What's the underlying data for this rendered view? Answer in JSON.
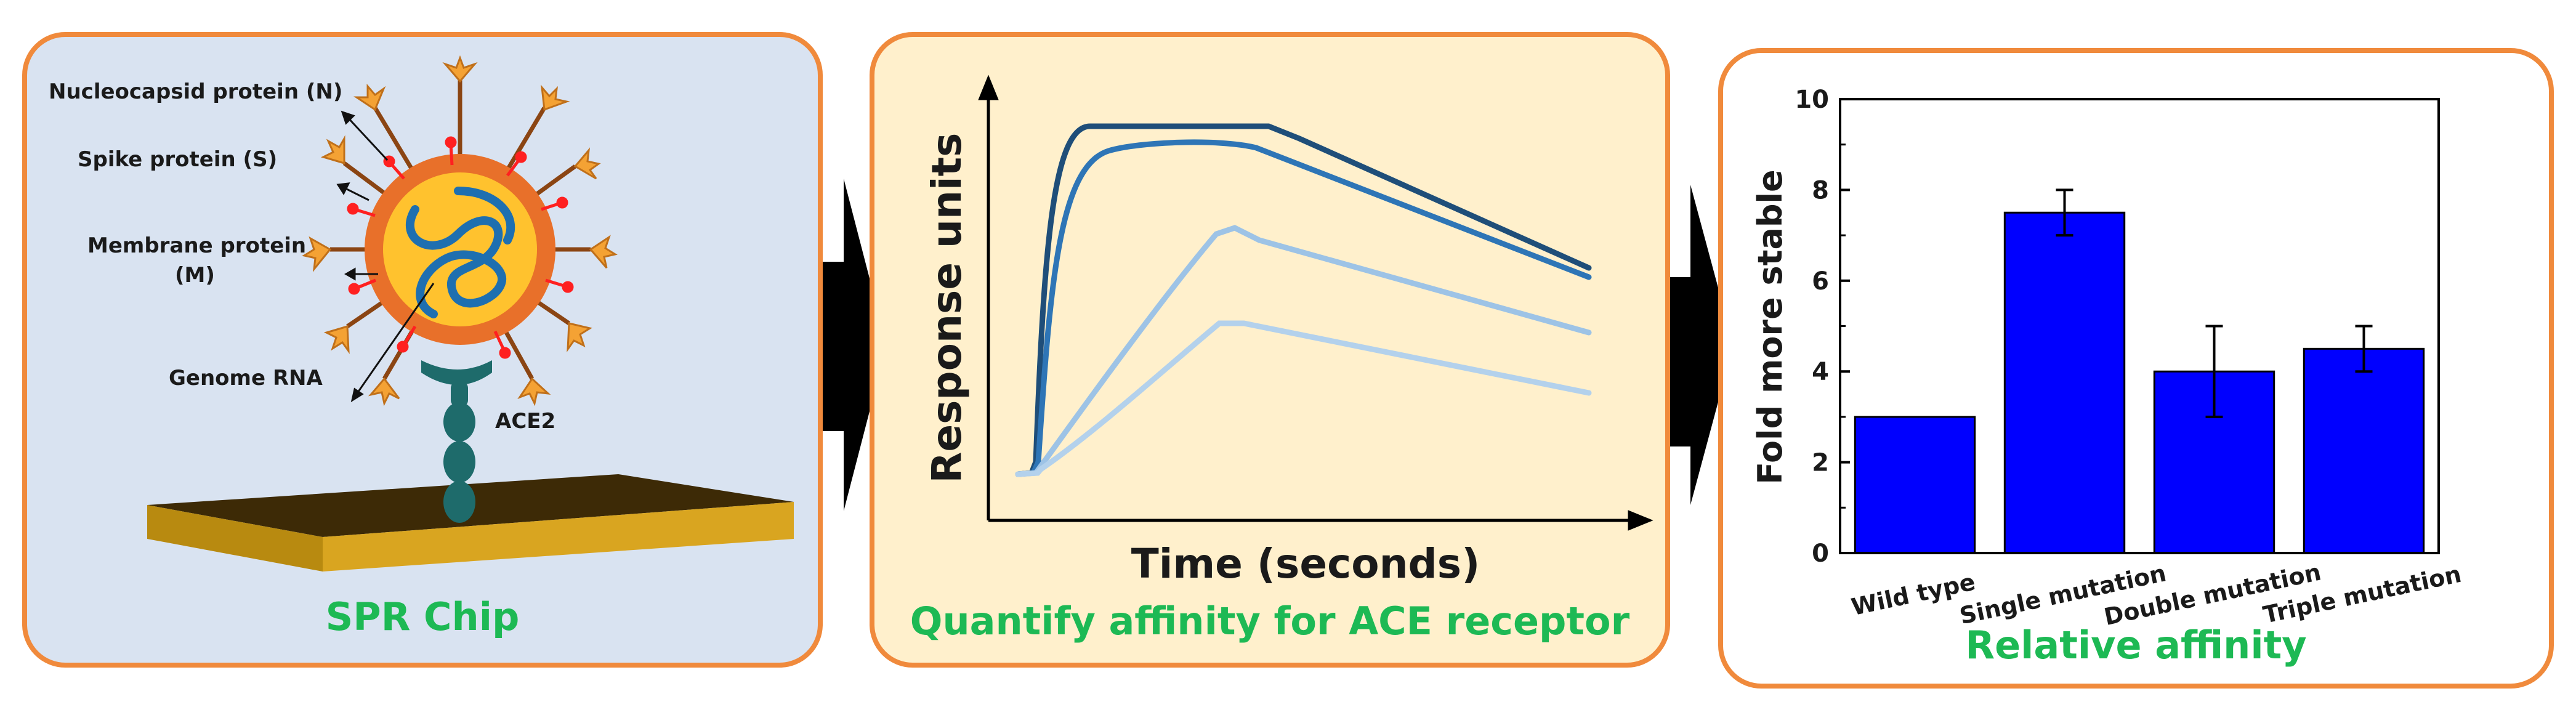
{
  "panel1": {
    "caption": "SPR Chip",
    "labels": {
      "nucleocapsid": "Nucleocapsid protein (N)",
      "spike": "Spike protein (S)",
      "membrane_1": "Membrane protein",
      "membrane_2": "(M)",
      "genome": "Genome RNA",
      "receptor": "ACE2"
    }
  },
  "panel2": {
    "caption": "Quantify affinity for ACE receptor",
    "xlabel": "Time (seconds)",
    "ylabel": "Response units"
  },
  "panel3": {
    "caption": "Relative affinity"
  },
  "colors": {
    "border": "#f08a3c",
    "caption": "#1db954",
    "bar": "#0000ff",
    "curve_dark": "#1f4e79",
    "curve_mid": "#2e75b6",
    "curve_light": "#9dc3e6"
  },
  "chart_data": {
    "type": "bar",
    "categories": [
      "Wild type",
      "Single mutation",
      "Double mutation",
      "Triple mutation"
    ],
    "values": [
      3,
      7.5,
      4,
      4.5
    ],
    "errors": [
      0,
      0.5,
      1,
      0.5
    ],
    "ylabel": "Fold more stable",
    "xlabel": "",
    "ylim": [
      0,
      10
    ],
    "yticks": [
      "0",
      "2",
      "4",
      "6",
      "8",
      "10"
    ],
    "grid": false
  }
}
